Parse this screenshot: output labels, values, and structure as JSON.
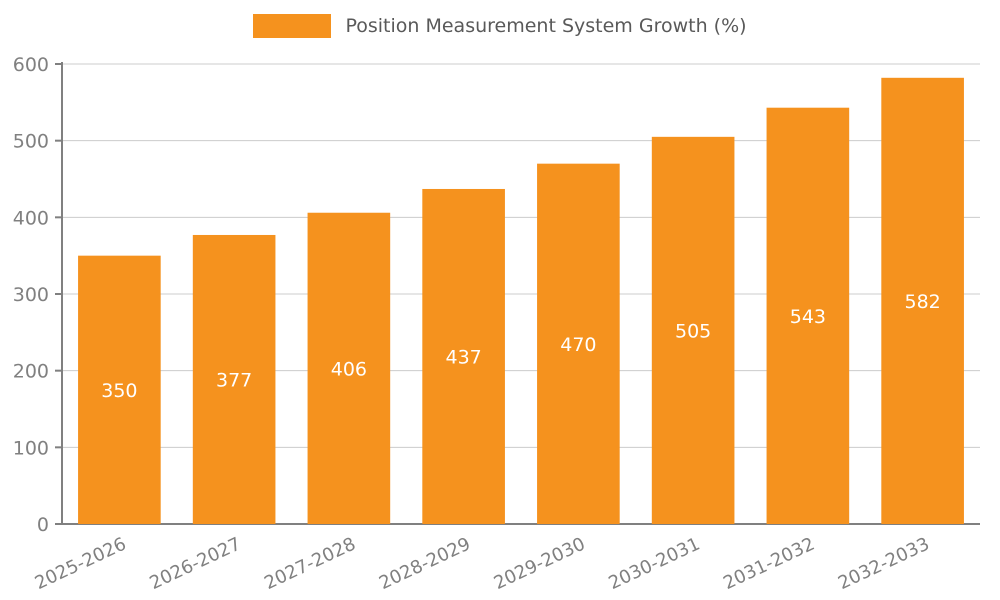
{
  "chart_data": {
    "type": "bar",
    "title": "Position Measurement System Growth (%)",
    "categories": [
      "2025-2026",
      "2026-2027",
      "2027-2028",
      "2028-2029",
      "2029-2030",
      "2030-2031",
      "2031-2032",
      "2032-2033"
    ],
    "values": [
      350,
      377,
      406,
      437,
      470,
      505,
      543,
      582
    ],
    "ylim": [
      0,
      600
    ],
    "ytick_step": 100,
    "yticks": [
      0,
      100,
      200,
      300,
      400,
      500,
      600
    ],
    "grid": true,
    "legend_position": "top",
    "bar_label_position": "inside-middle",
    "colors": {
      "bar": "#f5921e",
      "bar_label": "#ffffff",
      "axis": "#808080",
      "grid": "#cccccc",
      "tick_label": "#808080",
      "legend_text": "#595959"
    }
  }
}
